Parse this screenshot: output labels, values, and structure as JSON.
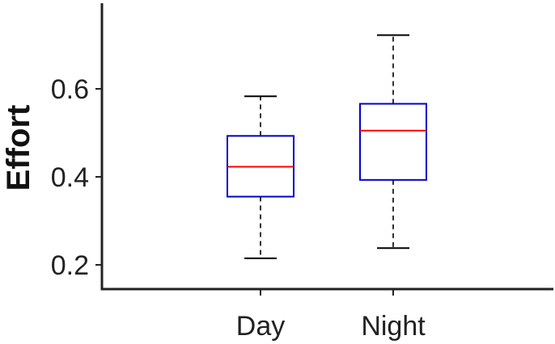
{
  "chart_data": {
    "type": "boxplot",
    "title": "",
    "xlabel": "",
    "ylabel": "Effort",
    "categories": [
      "Day",
      "Night"
    ],
    "boxes": [
      {
        "category": "Day",
        "whisker_low": 0.215,
        "q1": 0.355,
        "median": 0.423,
        "q3": 0.493,
        "whisker_high": 0.583
      },
      {
        "category": "Night",
        "whisker_low": 0.238,
        "q1": 0.393,
        "median": 0.505,
        "q3": 0.566,
        "whisker_high": 0.722
      }
    ],
    "y_ticks": [
      0.2,
      0.4,
      0.6
    ],
    "y_tick_labels": [
      "0.2",
      "0.4",
      "0.6"
    ],
    "ylim": [
      0.15,
      0.81
    ],
    "grid": false,
    "colors": {
      "box": "#0000cc",
      "median": "#ff0000",
      "whisker": "#000000",
      "axis": "#222222"
    }
  }
}
